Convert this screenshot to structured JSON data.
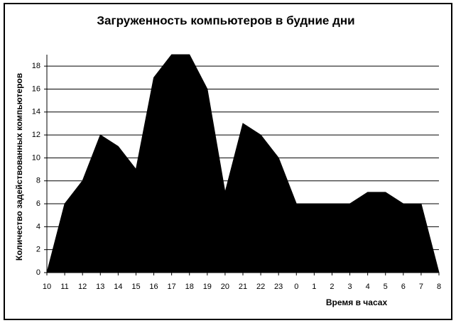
{
  "chart_data": {
    "type": "area",
    "title": "Загруженность компьютеров в будние дни",
    "x_label": "Время в часах",
    "y_label": "Количество задействованных компьютеров",
    "categories": [
      "10",
      "11",
      "12",
      "13",
      "14",
      "15",
      "16",
      "17",
      "18",
      "19",
      "20",
      "21",
      "22",
      "23",
      "0",
      "1",
      "2",
      "3",
      "4",
      "5",
      "6",
      "7",
      "8"
    ],
    "values": [
      0,
      6,
      8,
      12,
      11,
      9,
      17,
      19,
      19,
      16,
      7,
      13,
      12,
      10,
      6,
      6,
      6,
      6,
      7,
      7,
      6,
      6,
      0
    ],
    "color": "#000000",
    "ylim": [
      0,
      19
    ],
    "yticks": [
      0,
      2,
      4,
      6,
      8,
      10,
      12,
      14,
      16,
      18
    ],
    "grid": true
  }
}
